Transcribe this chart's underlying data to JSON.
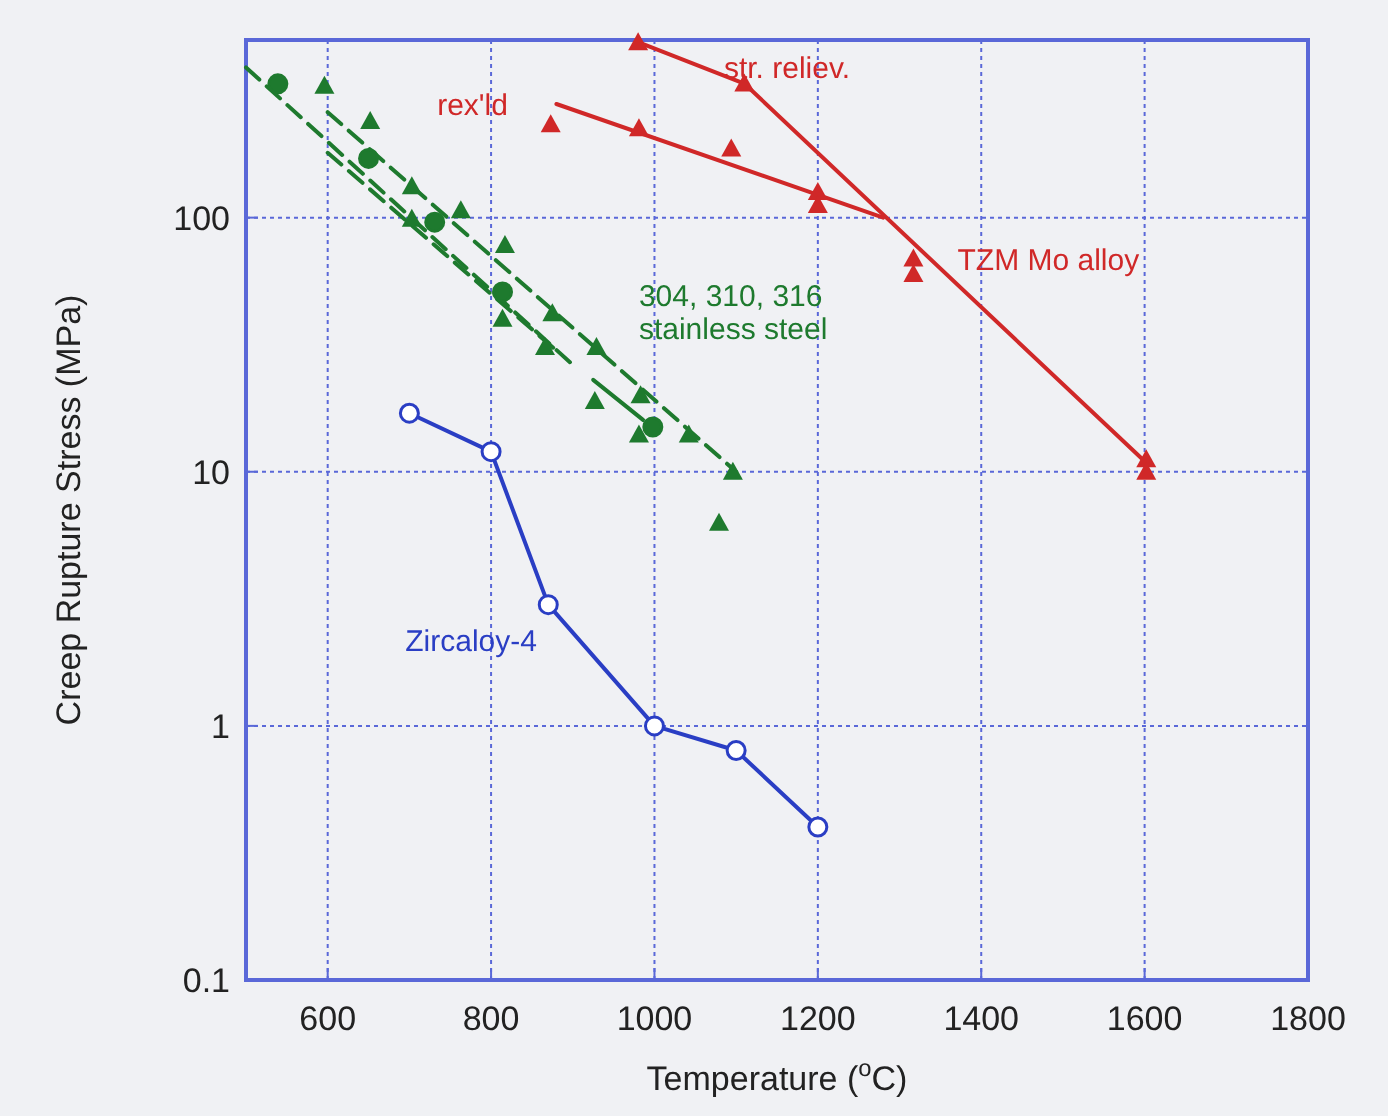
{
  "chart_data": {
    "type": "line",
    "xlabel": "Temperature ($^{o}$C)",
    "ylabel": "Creep Rupture Stress (MPa)",
    "log": "y",
    "grid": true,
    "xlim": [
      500,
      1800
    ],
    "xticks": [
      600,
      800,
      1000,
      1200,
      1400,
      1600,
      1800
    ],
    "ylim": [
      0.1,
      500
    ],
    "yticks": [
      0.1,
      1,
      10,
      100
    ],
    "series": [
      {
        "color": "#2a3ec4",
        "marker": "circle",
        "line_style": "solid",
        "x": [
          700,
          800,
          870,
          1000,
          1100,
          1200
        ],
        "values": [
          17,
          12,
          3,
          1,
          0.8,
          0.4
        ]
      },
      {
        "color": "#d02828",
        "marker": "none",
        "line_style": "solid",
        "x": [
          980,
          1110,
          1600
        ],
        "values": [
          490,
          337,
          11
        ]
      },
      {
        "type": "line",
        "color": "#d02828",
        "marker": "none",
        "line_style": "solid",
        "x": [
          880,
          1280
        ],
        "values": [
          280,
          100
        ]
      },
      {
        "type": "scatter",
        "color": "#d02828",
        "marker": "triangle",
        "x": [
          980,
          1110,
          873,
          981,
          1094,
          1200,
          1200,
          1317,
          1317,
          1602,
          1602
        ],
        "values": [
          490,
          337,
          233,
          225,
          187,
          126,
          112,
          69,
          60,
          11.2,
          10
        ]
      },
      {
        "type": "line",
        "color": "#1e7a2e",
        "marker": "none",
        "line_style": "dashed",
        "x": [
          500,
          802,
          902
        ],
        "values": [
          390,
          51,
          26
        ]
      },
      {
        "type": "line",
        "color": "#1e7a2e",
        "marker": "none",
        "line_style": "solid",
        "x": [
          925,
          986
        ],
        "values": [
          23,
          16
        ]
      },
      {
        "type": "line",
        "color": "#1e7a2e",
        "marker": "none",
        "line_style": "dashed",
        "x": [
          600,
          1100
        ],
        "values": [
          260,
          10
        ]
      },
      {
        "type": "line",
        "color": "#1e7a2e",
        "marker": "none",
        "line_style": "dashed",
        "x": [
          600,
          880
        ],
        "values": [
          180,
          30
        ]
      },
      {
        "type": "scatter",
        "color": "#1e7a2e",
        "marker": "circle",
        "x": [
          539,
          650,
          731,
          814,
          998
        ],
        "values": [
          336,
          171,
          96,
          51,
          15
        ]
      },
      {
        "type": "scatter",
        "color": "#1e7a2e",
        "marker": "triangle",
        "x": [
          596,
          652,
          703,
          703,
          763,
          817,
          814,
          866,
          875,
          927,
          929,
          981,
          983,
          1042,
          1096,
          1079
        ],
        "values": [
          330,
          240,
          133,
          99,
          107,
          78,
          40,
          31,
          42,
          19,
          31,
          14,
          20,
          14,
          10,
          6.3
        ]
      }
    ],
    "annotations": [
      "str. reliev.",
      "rex'ld",
      "TZM Mo alloy",
      "304, 310, 316\nstainless steel",
      "Zircaloy-4"
    ]
  }
}
